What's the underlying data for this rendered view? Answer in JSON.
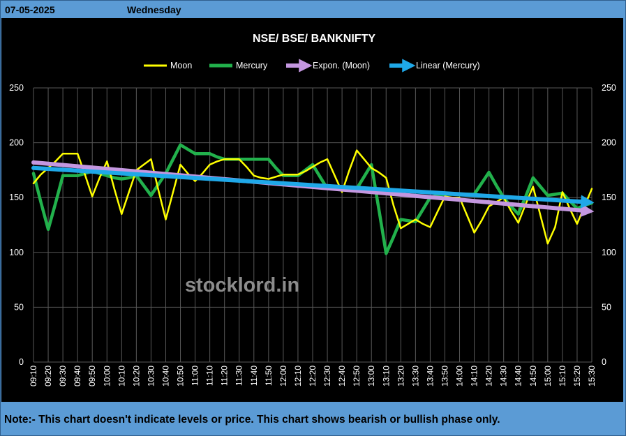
{
  "header": {
    "date": "07-05-2025",
    "day": "Wednesday"
  },
  "note": "Note:- This chart doesn't indicate levels or price. This chart shows bearish or bullish phase only.",
  "watermark": "stocklord.in",
  "colors": {
    "moon": "#ffff00",
    "mercury": "#22b14c",
    "expon": "#c497e0",
    "linear": "#1fa8e8",
    "background": "#000000",
    "frame": "#5b9bd5"
  },
  "chart_data": {
    "type": "line",
    "title": "NSE/ BSE/ BANKNIFTY",
    "ylim": [
      0,
      250
    ],
    "yticks": [
      0,
      50,
      100,
      150,
      200,
      250
    ],
    "grid": true,
    "legend_position": "top",
    "x": [
      "09:10",
      "09:15",
      "09:20",
      "09:25",
      "09:30",
      "09:35",
      "09:40",
      "09:45",
      "09:50",
      "09:55",
      "10:00",
      "10:05",
      "10:10",
      "10:15",
      "10:20",
      "10:25",
      "10:30",
      "10:35",
      "10:40",
      "10:45",
      "10:50",
      "10:55",
      "11:00",
      "11:05",
      "11:10",
      "11:15",
      "11:20",
      "11:25",
      "11:30",
      "11:35",
      "11:40",
      "11:45",
      "11:50",
      "11:55",
      "12:00",
      "12:05",
      "12:10",
      "12:15",
      "12:20",
      "12:25",
      "12:30",
      "12:35",
      "12:40",
      "12:45",
      "12:50",
      "12:55",
      "13:00",
      "13:05",
      "13:10",
      "13:15",
      "13:20",
      "13:25",
      "13:30",
      "13:35",
      "13:40",
      "13:45",
      "13:50",
      "13:55",
      "14:00",
      "14:05",
      "14:10",
      "14:15",
      "14:20",
      "14:25",
      "14:30",
      "14:35",
      "14:40",
      "14:45",
      "14:50",
      "14:55",
      "15:00",
      "15:05",
      "15:10",
      "15:15",
      "15:20",
      "15:25",
      "15:30"
    ],
    "xtick_labels": [
      "09:10",
      "09:20",
      "09:30",
      "09:40",
      "09:50",
      "10:00",
      "10:10",
      "10:20",
      "10:30",
      "10:40",
      "10:50",
      "11:00",
      "11:10",
      "11:20",
      "11:30",
      "11:40",
      "11:50",
      "12:00",
      "12:10",
      "12:20",
      "12:30",
      "12:40",
      "12:50",
      "13:00",
      "13:10",
      "13:20",
      "13:30",
      "13:40",
      "13:50",
      "14:00",
      "14:10",
      "14:20",
      "14:30",
      "14:40",
      "14:50",
      "15:00",
      "15:10",
      "15:20",
      "15:30"
    ],
    "series": [
      {
        "name": "Moon",
        "values": [
          163,
          171,
          177,
          183,
          190,
          190,
          190,
          171,
          151,
          168,
          183,
          158,
          135,
          155,
          175,
          180,
          185,
          157,
          130,
          155,
          180,
          172,
          165,
          172,
          180,
          183,
          185,
          185,
          185,
          178,
          170,
          168,
          167,
          169,
          171,
          171,
          171,
          174,
          178,
          182,
          185,
          170,
          155,
          175,
          193,
          185,
          177,
          173,
          168,
          143,
          122,
          126,
          130,
          126,
          123,
          137,
          151,
          150,
          150,
          134,
          118,
          129,
          142,
          146,
          150,
          138,
          127,
          144,
          160,
          134,
          108,
          123,
          155,
          140,
          126,
          142,
          158
        ]
      },
      {
        "name": "Mercury",
        "values": [
          172,
          146,
          121,
          145,
          170,
          170,
          170,
          172,
          174,
          172,
          170,
          168,
          167,
          168,
          170,
          161,
          152,
          162,
          172,
          185,
          198,
          194,
          190,
          190,
          190,
          187,
          185,
          185,
          185,
          185,
          185,
          185,
          185,
          177,
          170,
          170,
          170,
          175,
          180,
          169,
          158,
          158,
          158,
          158,
          158,
          169,
          180,
          140,
          99,
          114,
          130,
          129,
          128,
          139,
          150,
          152,
          153,
          153,
          153,
          153,
          153,
          163,
          173,
          161,
          150,
          142,
          135,
          151,
          168,
          160,
          152,
          153,
          154,
          147,
          140,
          143,
          145
        ]
      },
      {
        "name": "Expon. (Moon)",
        "start": 182,
        "end": 138
      },
      {
        "name": "Linear (Mercury)",
        "start": 177,
        "end": 146
      }
    ]
  }
}
